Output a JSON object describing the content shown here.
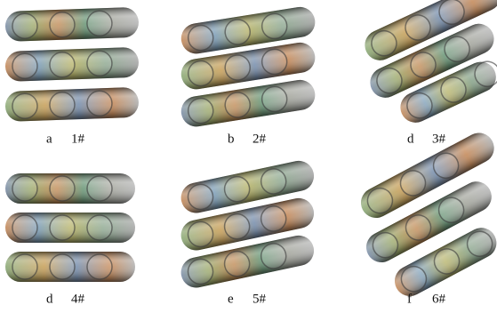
{
  "panels": [
    {
      "letter": "a",
      "label": "1#"
    },
    {
      "letter": "b",
      "label": "2#"
    },
    {
      "letter": "d",
      "label": "3#"
    },
    {
      "letter": "d",
      "label": "4#"
    },
    {
      "letter": "e",
      "label": "5#"
    },
    {
      "letter": "f",
      "label": "6#"
    }
  ]
}
